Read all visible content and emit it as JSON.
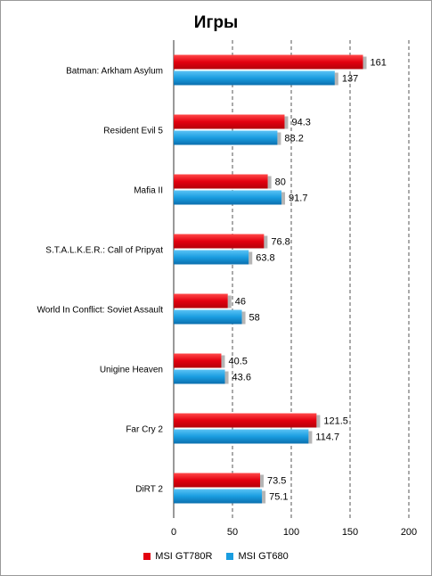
{
  "chart_data": {
    "type": "bar",
    "orientation": "horizontal",
    "title": "Игры",
    "categories": [
      "Batman: Arkham Asylum",
      "Resident Evil 5",
      "Mafia II",
      "S.T.A.L.K.E.R.: Call of Pripyat",
      "World In Conflict: Soviet Assault",
      "Unigine Heaven",
      "Far Cry 2",
      "DiRT 2"
    ],
    "series": [
      {
        "name": "MSI GT780R",
        "color": "#e3000f",
        "values": [
          161,
          94.3,
          80,
          76.8,
          46,
          40.5,
          121.5,
          73.5
        ]
      },
      {
        "name": "MSI GT680",
        "color": "#1a9de0",
        "values": [
          137,
          88.2,
          91.7,
          63.8,
          58,
          43.6,
          114.7,
          75.1
        ]
      }
    ],
    "data_labels": {
      "MSI GT780R": [
        "161",
        "94.3",
        "80",
        "76.8",
        "46",
        "40.5",
        "121.5",
        "73.5"
      ],
      "MSI GT680": [
        "137",
        "88.2",
        "91.7",
        "63.8",
        "58",
        "43.6",
        "114.7",
        "75.1"
      ]
    },
    "xlim": [
      0,
      200
    ],
    "xticks": [
      "0",
      "50",
      "100",
      "150",
      "200"
    ],
    "grid": "vertical-dashed",
    "legend_position": "bottom"
  }
}
